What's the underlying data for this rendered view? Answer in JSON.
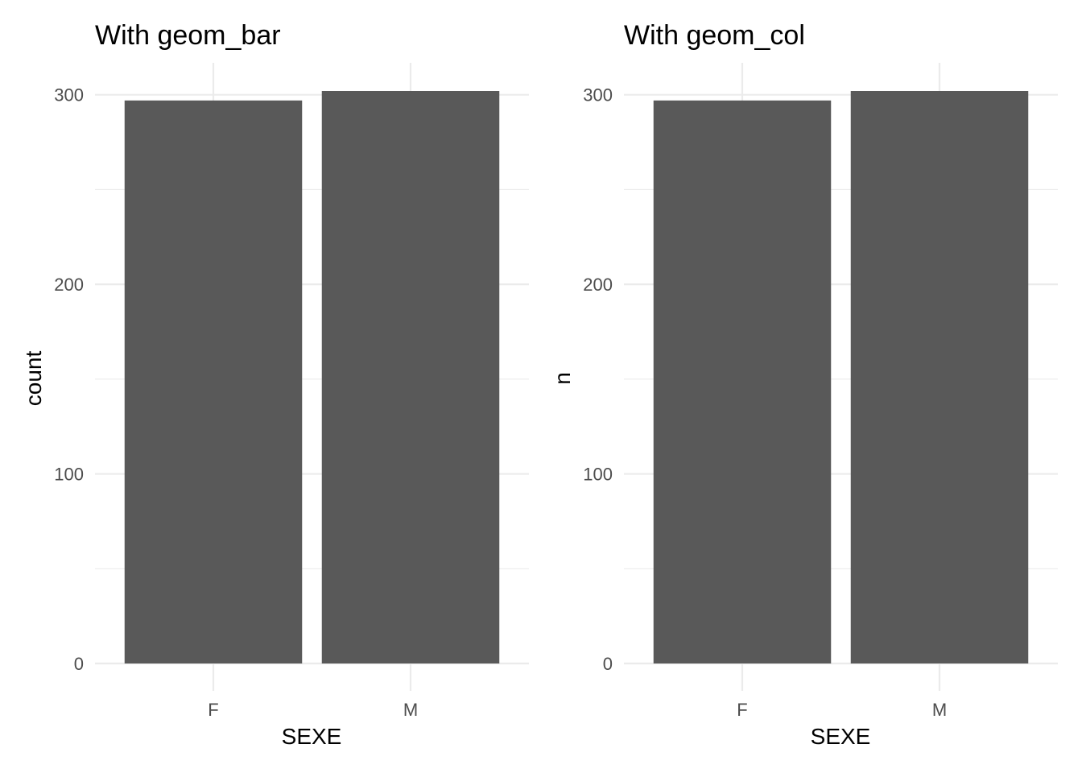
{
  "chart_data": [
    {
      "type": "bar",
      "title": "With geom_bar",
      "xlabel": "SEXE",
      "ylabel": "count",
      "categories": [
        "F",
        "M"
      ],
      "values": [
        297,
        302
      ],
      "ylim": [
        0,
        302
      ],
      "yticks": [
        0,
        100,
        200,
        300
      ],
      "bar_color": "#595959",
      "grid": true
    },
    {
      "type": "bar",
      "title": "With geom_col",
      "xlabel": "SEXE",
      "ylabel": "n",
      "categories": [
        "F",
        "M"
      ],
      "values": [
        297,
        302
      ],
      "ylim": [
        0,
        302
      ],
      "yticks": [
        0,
        100,
        200,
        300
      ],
      "bar_color": "#595959",
      "grid": true
    }
  ]
}
